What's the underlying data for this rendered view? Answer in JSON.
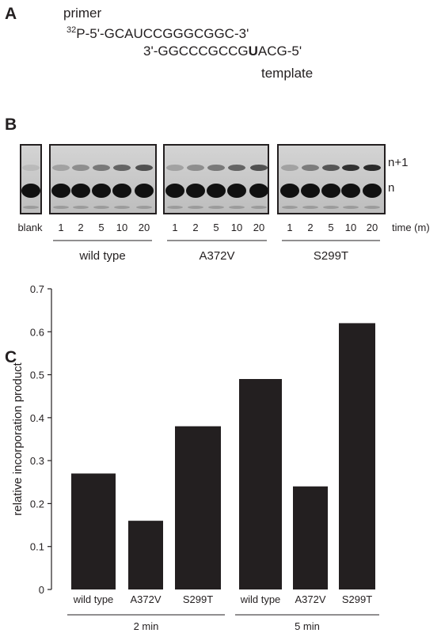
{
  "panel_a": {
    "letter": "A",
    "primer_label": "primer",
    "primer_superscript": "32",
    "primer_sequence": "P-5'-GCAUCCGGGCGGC-3'",
    "template_sequence": [
      "3'-GGCCCGCCG",
      "U",
      "ACG-5'"
    ],
    "template_label": "template"
  },
  "panel_b": {
    "letter": "B",
    "blank_label": "blank",
    "time_points": [
      "1",
      "2",
      "5",
      "10",
      "20"
    ],
    "time_label": "time (m)",
    "groups": [
      "wild type",
      "A372V",
      "S299T"
    ],
    "band_labels": [
      "n+1",
      "n"
    ]
  },
  "chart_data": {
    "type": "bar",
    "letter": "C",
    "ylabel": "relative incorporation product",
    "categories": [
      "wild type",
      "A372V",
      "S299T",
      "wild type",
      "A372V",
      "S299T"
    ],
    "groups": [
      "2 min",
      "5 min"
    ],
    "values": [
      0.27,
      0.16,
      0.38,
      0.49,
      0.24,
      0.62
    ],
    "color": "#231f20",
    "ylim": [
      0,
      0.7
    ],
    "yticks": [
      0,
      0.1,
      0.2,
      0.3,
      0.4,
      0.5,
      0.6,
      0.7
    ]
  }
}
